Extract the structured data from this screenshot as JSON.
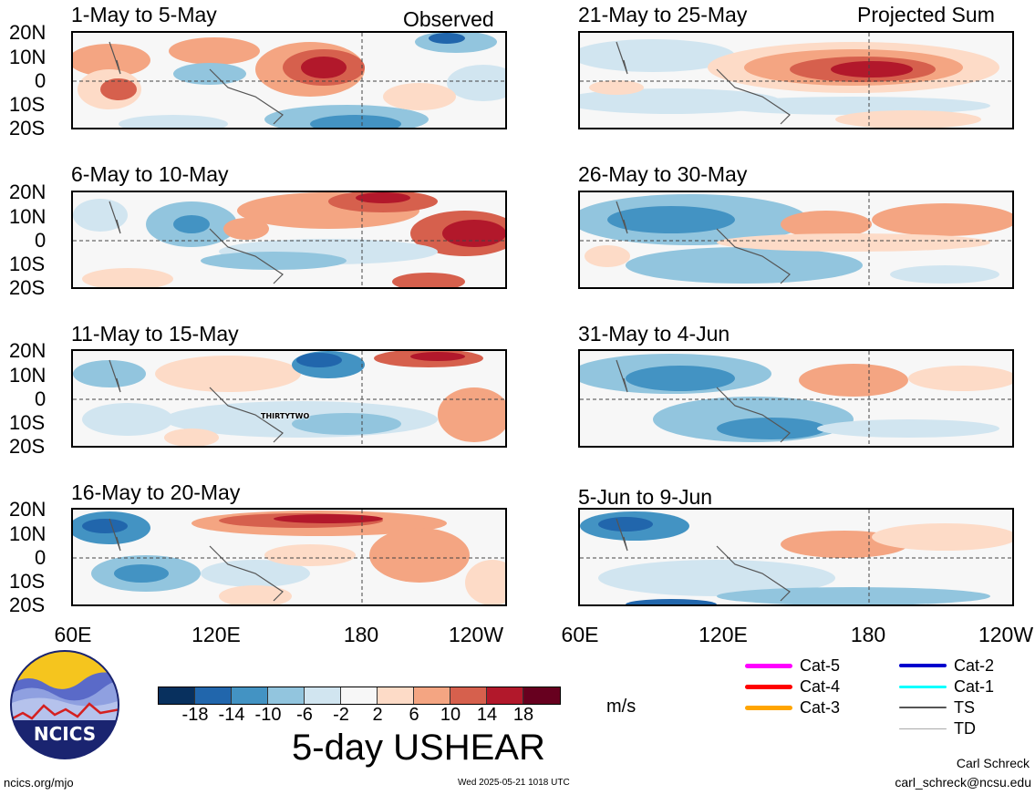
{
  "observed_tag": "Observed",
  "projected_tag": "Projected Sum",
  "panels": [
    {
      "title": "1-May to 5-May"
    },
    {
      "title": "6-May to 10-May"
    },
    {
      "title": "11-May to 15-May"
    },
    {
      "title": "16-May to 20-May"
    },
    {
      "title": "21-May to 25-May"
    },
    {
      "title": "26-May to 30-May"
    },
    {
      "title": "31-May to 4-Jun"
    },
    {
      "title": "5-Jun to 9-Jun"
    }
  ],
  "lat_labels": [
    "20N",
    "10N",
    "0",
    "10S",
    "20S"
  ],
  "lon_labels": [
    "60E",
    "120E",
    "180",
    "120W"
  ],
  "right_lon_labels": [
    "60E",
    "120E",
    "180",
    "120W"
  ],
  "storm_label": "THIRTYTWO",
  "colorbar": {
    "colors": [
      "#08305e",
      "#2166ac",
      "#4393c3",
      "#92c5de",
      "#d1e5f0",
      "#f7f7f7",
      "#fddbc7",
      "#f4a582",
      "#d6604d",
      "#b2182b",
      "#67001f"
    ],
    "ticks": [
      "-18",
      "-14",
      "-10",
      "-6",
      "-2",
      "2",
      "6",
      "10",
      "14",
      "18"
    ]
  },
  "units": "m/s",
  "main_title": "5-day USHEAR",
  "legend": [
    {
      "label": "Cat-5",
      "color": "#ff00ff",
      "width": 5
    },
    {
      "label": "Cat-4",
      "color": "#ff0000",
      "width": 5
    },
    {
      "label": "Cat-3",
      "color": "#ffa500",
      "width": 5
    },
    {
      "label": "Cat-2",
      "color": "#0000cd",
      "width": 4
    },
    {
      "label": "Cat-1",
      "color": "#00ffff",
      "width": 3
    },
    {
      "label": "TS",
      "color": "#555555",
      "width": 2
    },
    {
      "label": "TD",
      "color": "#aaaaaa",
      "width": 1
    }
  ],
  "logo_text": "NCICS",
  "footer_left": "ncics.org/mjo",
  "footer_center": "Wed 2025-05-21 1018 UTC",
  "author_name": "Carl Schreck",
  "author_email": "carl_schreck@ncsu.edu"
}
